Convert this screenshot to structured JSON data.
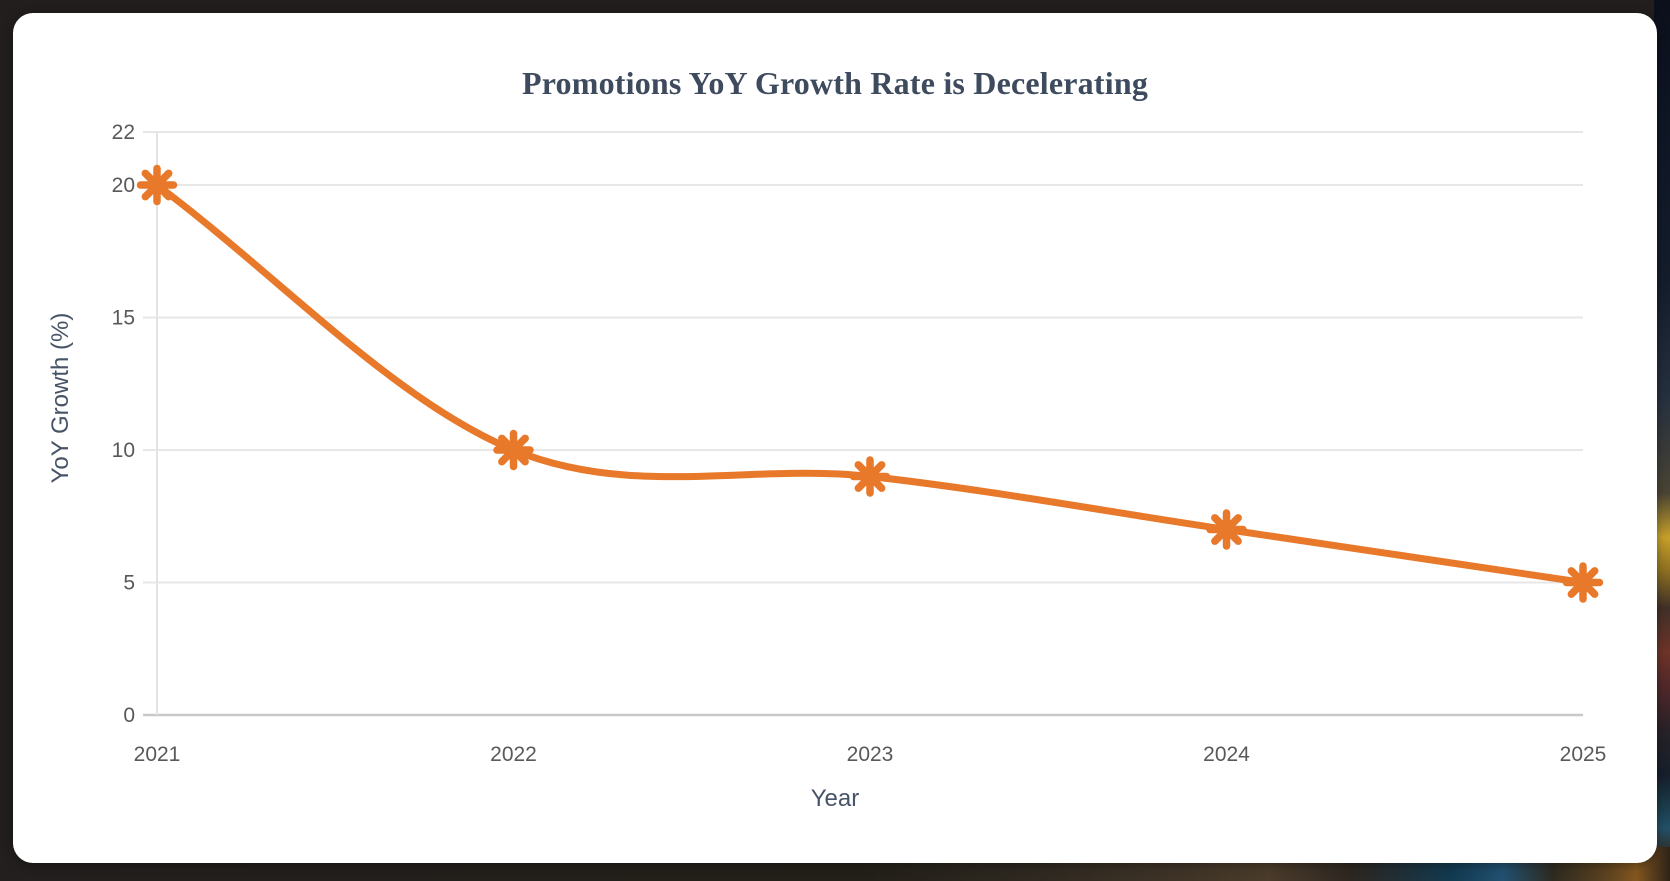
{
  "card": {
    "background_color": "#ffffff"
  },
  "chart_data": {
    "type": "line",
    "title": "Promotions YoY Growth Rate is Decelerating",
    "xlabel": "Year",
    "ylabel": "YoY Growth (%)",
    "categories": [
      "2021",
      "2022",
      "2023",
      "2024",
      "2025"
    ],
    "series": [
      {
        "name": "YoY Growth",
        "values": [
          20,
          10,
          9,
          7,
          5
        ]
      }
    ],
    "ylim": [
      0,
      22
    ],
    "yticks": [
      0,
      5,
      10,
      15,
      20,
      22
    ],
    "grid": "horizontal",
    "legend": "none",
    "smooth": true,
    "marker": "asterisk",
    "colors": {
      "line": "#e8782a",
      "marker": "#e8782a",
      "title": "#3e4b5e",
      "tick_labels": "#595959",
      "axis_titles": "#475467",
      "gridline": "#e7e7e7",
      "x_axis_line": "#c9c9c9",
      "y_axis_line": "#e3e3e3"
    }
  }
}
